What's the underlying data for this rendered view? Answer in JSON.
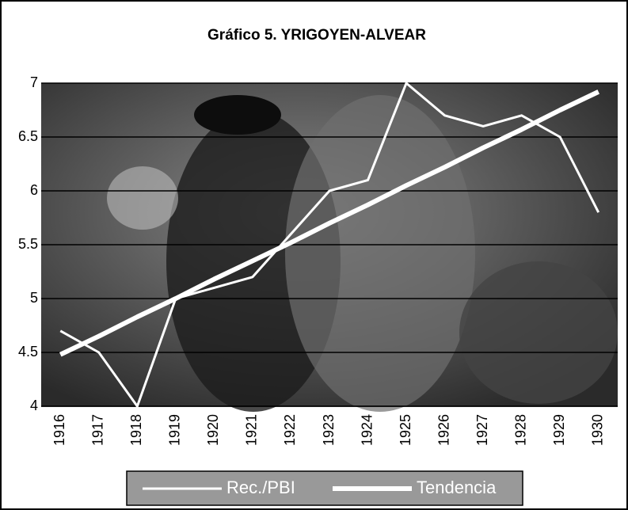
{
  "chart_data": {
    "type": "line",
    "title": "Gráfico 5. YRIGOYEN-ALVEAR",
    "categories": [
      "1916",
      "1917",
      "1918",
      "1919",
      "1920",
      "1921",
      "1922",
      "1923",
      "1924",
      "1925",
      "1926",
      "1927",
      "1928",
      "1929",
      "1930"
    ],
    "series": [
      {
        "name": "Rec./PBI",
        "color": "#ffffff",
        "line_width": 3,
        "values": [
          4.7,
          4.5,
          4.0,
          5.0,
          5.1,
          5.2,
          5.6,
          6.0,
          6.1,
          7.0,
          6.7,
          6.6,
          6.7,
          6.5,
          5.8
        ]
      },
      {
        "name": "Tendencia",
        "color": "#ffffff",
        "line_width": 6,
        "values": [
          4.48,
          4.65,
          4.83,
          5.0,
          5.18,
          5.35,
          5.52,
          5.7,
          5.87,
          6.05,
          6.22,
          6.4,
          6.57,
          6.75,
          6.92
        ]
      }
    ],
    "ylim": [
      4,
      7
    ],
    "yticks": [
      4,
      4.5,
      5,
      5.5,
      6,
      6.5,
      7
    ],
    "grid": true,
    "legend": "bottom"
  }
}
